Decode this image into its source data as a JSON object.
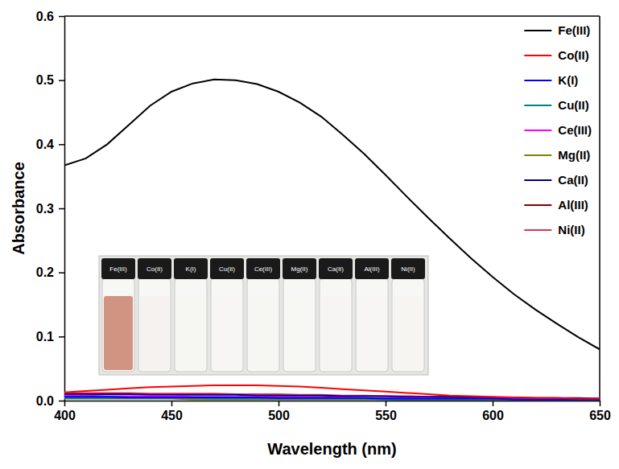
{
  "chart_data": {
    "type": "line",
    "x_label": "Wavelength (nm)",
    "y_label": "Absorbance",
    "x": [
      400,
      410,
      420,
      430,
      440,
      450,
      460,
      470,
      480,
      490,
      500,
      510,
      520,
      530,
      540,
      550,
      560,
      570,
      580,
      590,
      600,
      610,
      620,
      630,
      640,
      650
    ],
    "xlim": [
      400,
      650
    ],
    "xticks": [
      400,
      450,
      500,
      550,
      600,
      650
    ],
    "ylim": [
      0,
      0.6
    ],
    "yticks": [
      {
        "value": 0,
        "label": "0.0"
      },
      0.1,
      0.2,
      0.3,
      0.4,
      0.5,
      0.6
    ],
    "grid": false,
    "legend": "upper right",
    "series": [
      {
        "name": "Fe(III)",
        "color": "#000000",
        "values": [
          0.367,
          0.378,
          0.4,
          0.43,
          0.46,
          0.482,
          0.495,
          0.501,
          0.5,
          0.494,
          0.482,
          0.465,
          0.443,
          0.415,
          0.385,
          0.352,
          0.318,
          0.285,
          0.253,
          0.222,
          0.193,
          0.166,
          0.142,
          0.12,
          0.099,
          0.08
        ]
      },
      {
        "name": "Co(II)",
        "color": "#ff0000",
        "values": [
          0.013,
          0.015,
          0.017,
          0.019,
          0.021,
          0.022,
          0.023,
          0.024,
          0.024,
          0.024,
          0.023,
          0.022,
          0.02,
          0.018,
          0.016,
          0.014,
          0.012,
          0.01,
          0.008,
          0.007,
          0.006,
          0.005,
          0.004,
          0.004,
          0.003,
          0.003
        ]
      },
      {
        "name": "K(I)",
        "color": "#0000ff",
        "values": [
          0.006,
          0.006,
          0.006,
          0.005,
          0.005,
          0.005,
          0.005,
          0.005,
          0.005,
          0.005,
          0.004,
          0.004,
          0.004,
          0.004,
          0.004,
          0.003,
          0.003,
          0.003,
          0.003,
          0.003,
          0.003,
          0.002,
          0.002,
          0.002,
          0.002,
          0.002
        ]
      },
      {
        "name": "Cu(II)",
        "color": "#008080",
        "values": [
          0.004,
          0.004,
          0.004,
          0.004,
          0.004,
          0.004,
          0.004,
          0.003,
          0.003,
          0.003,
          0.003,
          0.003,
          0.003,
          0.003,
          0.003,
          0.002,
          0.002,
          0.002,
          0.002,
          0.002,
          0.002,
          0.002,
          0.002,
          0.001,
          0.001,
          0.001
        ]
      },
      {
        "name": "Ce(III)",
        "color": "#ff00ff",
        "values": [
          0.008,
          0.008,
          0.007,
          0.007,
          0.007,
          0.007,
          0.006,
          0.006,
          0.006,
          0.006,
          0.005,
          0.005,
          0.005,
          0.005,
          0.004,
          0.004,
          0.004,
          0.004,
          0.003,
          0.003,
          0.003,
          0.003,
          0.003,
          0.002,
          0.002,
          0.002
        ]
      },
      {
        "name": "Mg(II)",
        "color": "#808000",
        "values": [
          0.003,
          0.003,
          0.003,
          0.003,
          0.003,
          0.003,
          0.002,
          0.002,
          0.002,
          0.002,
          0.002,
          0.002,
          0.002,
          0.002,
          0.002,
          0.002,
          0.001,
          0.001,
          0.001,
          0.001,
          0.001,
          0.001,
          0.001,
          0.001,
          0.001,
          0.001
        ]
      },
      {
        "name": "Ca(II)",
        "color": "#000080",
        "values": [
          0.01,
          0.01,
          0.01,
          0.01,
          0.009,
          0.009,
          0.009,
          0.009,
          0.009,
          0.008,
          0.008,
          0.008,
          0.008,
          0.007,
          0.007,
          0.007,
          0.006,
          0.006,
          0.006,
          0.005,
          0.005,
          0.005,
          0.004,
          0.004,
          0.004,
          0.003
        ]
      },
      {
        "name": "Al(III)",
        "color": "#800000",
        "values": [
          0.005,
          0.005,
          0.005,
          0.005,
          0.005,
          0.005,
          0.004,
          0.004,
          0.004,
          0.004,
          0.004,
          0.004,
          0.004,
          0.003,
          0.003,
          0.003,
          0.003,
          0.003,
          0.003,
          0.003,
          0.002,
          0.002,
          0.002,
          0.002,
          0.002,
          0.002
        ]
      },
      {
        "name": "Ni(II)",
        "color": "#e0304e",
        "values": [
          0.012,
          0.012,
          0.012,
          0.012,
          0.011,
          0.011,
          0.011,
          0.011,
          0.01,
          0.01,
          0.01,
          0.009,
          0.009,
          0.008,
          0.008,
          0.007,
          0.007,
          0.006,
          0.006,
          0.005,
          0.005,
          0.004,
          0.004,
          0.004,
          0.003,
          0.003
        ]
      }
    ]
  }
}
